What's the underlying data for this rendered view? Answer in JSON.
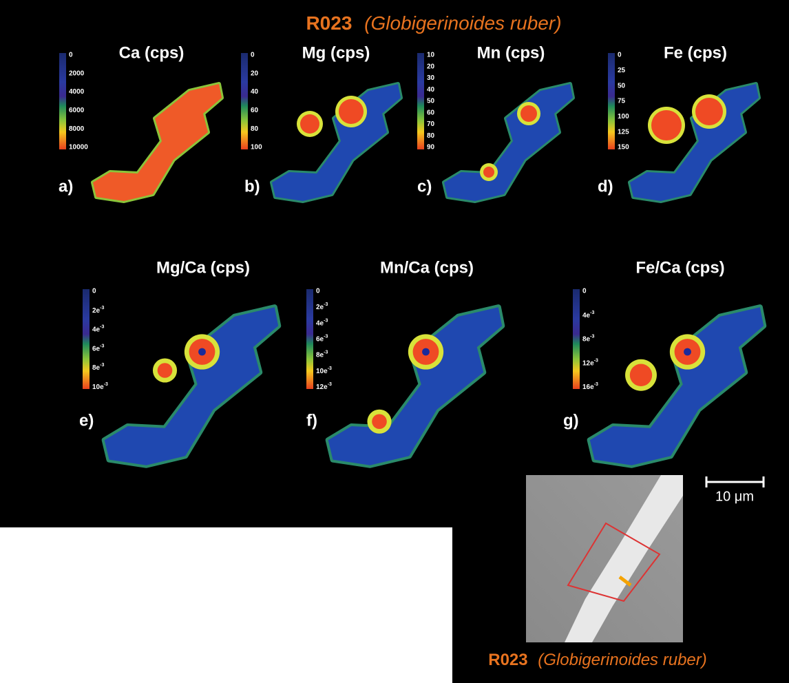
{
  "title": {
    "sample": "R023",
    "species": "(Globigerinoides ruber)"
  },
  "panels": [
    {
      "title": "Ca (cps)",
      "label": "a)",
      "scale": [
        "0",
        "2000",
        "4000",
        "6000",
        "8000",
        "10000"
      ]
    },
    {
      "title": "Mg (cps)",
      "label": "b)",
      "scale": [
        "0",
        "20",
        "40",
        "60",
        "80",
        "100"
      ]
    },
    {
      "title": "Mn (cps)",
      "label": "c)",
      "scale": [
        "10",
        "20",
        "30",
        "40",
        "50",
        "60",
        "70",
        "80",
        "90"
      ]
    },
    {
      "title": "Fe (cps)",
      "label": "d)",
      "scale": [
        "0",
        "25",
        "50",
        "75",
        "100",
        "125",
        "150"
      ]
    },
    {
      "title": "Mg/Ca (cps)",
      "label": "e)",
      "scale": [
        "0",
        {
          "base": "2e",
          "exp": "-3"
        },
        {
          "base": "4e",
          "exp": "-3"
        },
        {
          "base": "6e",
          "exp": "-3"
        },
        {
          "base": "8e",
          "exp": "-3"
        },
        {
          "base": "10e",
          "exp": "-3"
        }
      ]
    },
    {
      "title": "Mn/Ca (cps)",
      "label": "f)",
      "scale": [
        "0",
        {
          "base": "2e",
          "exp": "-3"
        },
        {
          "base": "4e",
          "exp": "-3"
        },
        {
          "base": "6e",
          "exp": "-3"
        },
        {
          "base": "8e",
          "exp": "-3"
        },
        {
          "base": "10e",
          "exp": "-3"
        },
        {
          "base": "12e",
          "exp": "-3"
        }
      ]
    },
    {
      "title": "Fe/Ca (cps)",
      "label": "g)",
      "scale": [
        "0",
        {
          "base": "4e",
          "exp": "-3"
        },
        {
          "base": "8e",
          "exp": "-3"
        },
        {
          "base": "12e",
          "exp": "-3"
        },
        {
          "base": "16e",
          "exp": "-3"
        }
      ]
    }
  ],
  "scale_bar": "10 μm",
  "caption": {
    "sample": "R023",
    "species": "(Globigerinoides ruber)"
  }
}
